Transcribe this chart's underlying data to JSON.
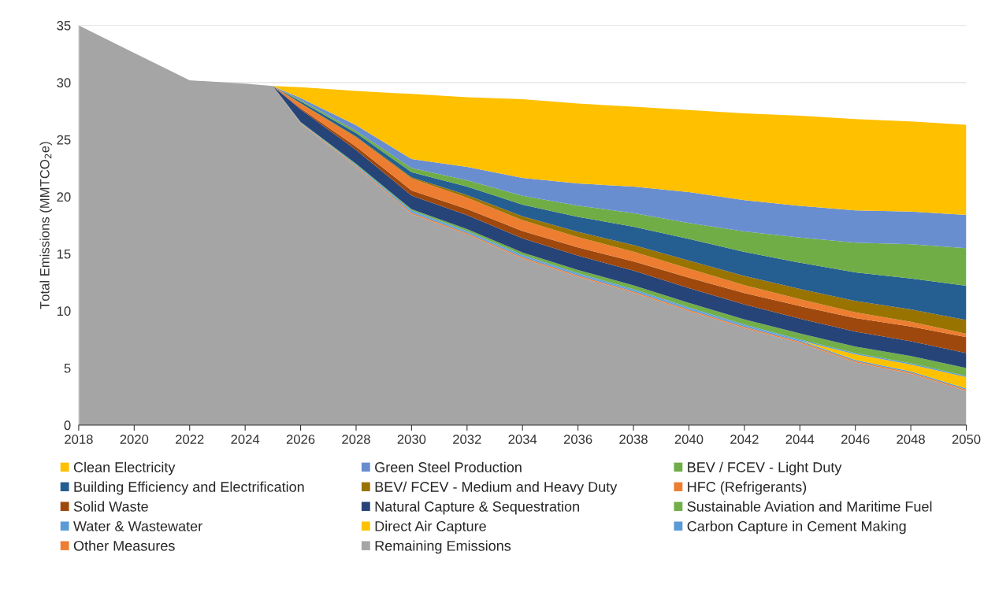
{
  "chart_data": {
    "type": "area",
    "stacked": true,
    "ylabel": "Total Emissions (MMTCO$_{2}$e)",
    "x": [
      2018,
      2020,
      2022,
      2024,
      2025,
      2026,
      2028,
      2030,
      2032,
      2034,
      2036,
      2038,
      2040,
      2042,
      2044,
      2046,
      2048,
      2050
    ],
    "xlim": [
      2018,
      2050
    ],
    "xticks": [
      2018,
      2020,
      2022,
      2024,
      2026,
      2028,
      2030,
      2032,
      2034,
      2036,
      2038,
      2040,
      2042,
      2044,
      2046,
      2048,
      2050
    ],
    "ylim": [
      0,
      35
    ],
    "yticks": [
      0,
      5,
      10,
      15,
      20,
      25,
      30,
      35
    ],
    "grid": "y",
    "legend": "bottom",
    "series": [
      {
        "name": "Remaining Emissions",
        "color": "#a5a5a5",
        "values": [
          35,
          32.6,
          30.2,
          29.9,
          29.7,
          26.4,
          22.6,
          18.5,
          16.7,
          14.6,
          13.0,
          11.6,
          10.0,
          8.5,
          7.2,
          5.5,
          4.5,
          3.0
        ]
      },
      {
        "name": "Other Measures",
        "color": "#ee7e33",
        "values": [
          0,
          0,
          0,
          0,
          0,
          0.05,
          0.08,
          0.1,
          0.1,
          0.1,
          0.1,
          0.1,
          0.1,
          0.1,
          0.1,
          0.1,
          0.1,
          0.1
        ]
      },
      {
        "name": "Carbon Capture in Cement Making",
        "color": "#5a9ad6",
        "values": [
          0,
          0,
          0,
          0,
          0,
          0,
          0.05,
          0.1,
          0.1,
          0.1,
          0.1,
          0.1,
          0.1,
          0.1,
          0.1,
          0.1,
          0.1,
          0.1
        ]
      },
      {
        "name": "Direct Air Capture",
        "color": "#fec203",
        "values": [
          0,
          0,
          0,
          0,
          0,
          0,
          0,
          0,
          0,
          0,
          0,
          0,
          0,
          0,
          0,
          0.5,
          0.6,
          1.0
        ]
      },
      {
        "name": "Water & Wastewater",
        "color": "#5b9bd5",
        "values": [
          0,
          0,
          0,
          0,
          0,
          0.05,
          0.08,
          0.1,
          0.1,
          0.1,
          0.1,
          0.1,
          0.1,
          0.1,
          0.1,
          0.1,
          0.1,
          0.1
        ]
      },
      {
        "name": "Sustainable Aviation and Maritime Fuel",
        "color": "#72af49",
        "values": [
          0,
          0,
          0,
          0,
          0,
          0.05,
          0.08,
          0.1,
          0.16,
          0.22,
          0.28,
          0.34,
          0.4,
          0.46,
          0.52,
          0.58,
          0.64,
          0.7
        ]
      },
      {
        "name": "Natural Capture & Sequestration",
        "color": "#264478",
        "values": [
          0,
          0,
          0,
          0,
          0,
          1.1,
          1.2,
          1.2,
          1.22,
          1.24,
          1.26,
          1.28,
          1.3,
          1.3,
          1.3,
          1.3,
          1.3,
          1.3
        ]
      },
      {
        "name": "Solid Waste",
        "color": "#9e480e",
        "values": [
          0,
          0,
          0,
          0,
          0,
          0.1,
          0.3,
          0.45,
          0.54,
          0.63,
          0.72,
          0.81,
          0.9,
          1.0,
          1.1,
          1.2,
          1.3,
          1.4
        ]
      },
      {
        "name": "HFC (Refrigerants)",
        "color": "#ed7d31",
        "values": [
          0,
          0,
          0,
          0,
          0,
          0.4,
          0.8,
          1.05,
          1.0,
          0.95,
          0.9,
          0.85,
          0.8,
          0.7,
          0.6,
          0.5,
          0.4,
          0.3
        ]
      },
      {
        "name": "BEV/ FCEV - Medium and Heavy Duty",
        "color": "#997300",
        "values": [
          0,
          0,
          0,
          0,
          0,
          0.05,
          0.08,
          0.1,
          0.22,
          0.34,
          0.46,
          0.58,
          0.7,
          0.8,
          0.9,
          1.0,
          1.1,
          1.2
        ]
      },
      {
        "name": "Building Efficiency and Electrification",
        "color": "#255e91",
        "values": [
          0,
          0,
          0,
          0,
          0,
          0.15,
          0.3,
          0.45,
          0.74,
          1.03,
          1.32,
          1.61,
          1.9,
          2.1,
          2.3,
          2.5,
          2.7,
          3.0
        ]
      },
      {
        "name": "BEV / FCEV - Light Duty",
        "color": "#70ad47",
        "values": [
          0,
          0,
          0,
          0,
          0,
          0.1,
          0.2,
          0.35,
          0.56,
          0.77,
          0.98,
          1.19,
          1.4,
          1.8,
          2.2,
          2.6,
          3.0,
          3.3
        ]
      },
      {
        "name": "Green Steel Production",
        "color": "#698ed0",
        "values": [
          0,
          0,
          0,
          0,
          0,
          0.2,
          0.5,
          0.8,
          1.18,
          1.56,
          1.94,
          2.32,
          2.7,
          2.74,
          2.78,
          2.82,
          2.86,
          2.9
        ]
      },
      {
        "name": "Clean Electricity",
        "color": "#ffc000",
        "values": [
          0,
          0,
          0,
          0,
          0,
          0.95,
          3.0,
          5.7,
          6.1,
          6.9,
          7.0,
          7.0,
          7.2,
          7.6,
          7.9,
          8.0,
          7.9,
          7.9
        ]
      }
    ]
  }
}
